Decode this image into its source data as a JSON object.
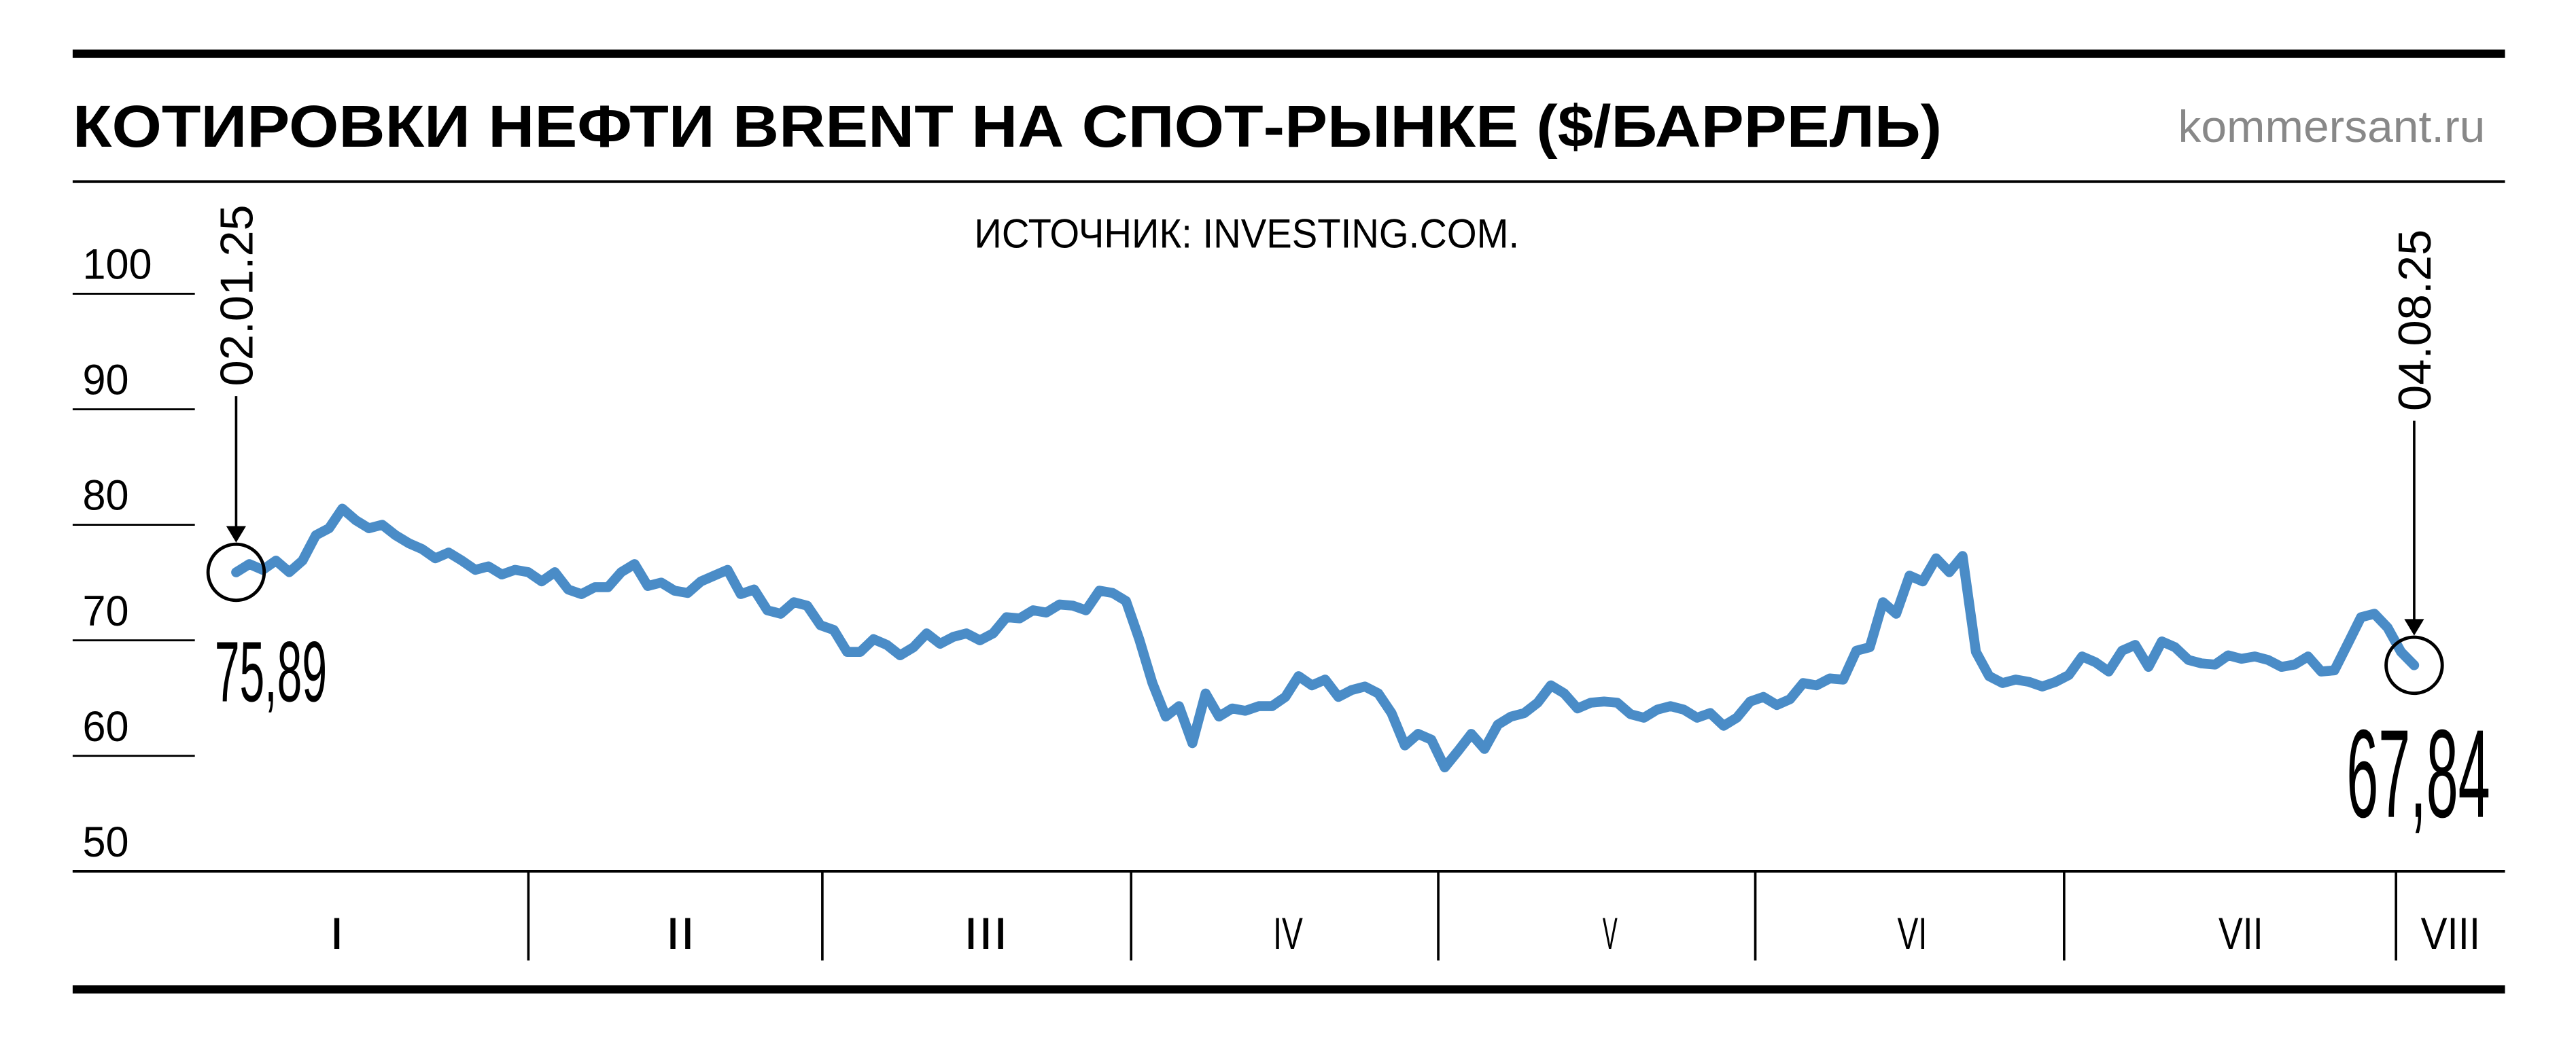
{
  "chart_data": {
    "type": "line",
    "title": "КОТИРОВКИ НЕФТИ BRENT НА СПОТ-РЫНКЕ ($/БАРРЕЛЬ)",
    "site": "kommersant.ru",
    "source": "ИСТОЧНИК: INVESTING.COM.",
    "months": [
      "I",
      "II",
      "III",
      "IV",
      "V",
      "VI",
      "VII",
      "VIII"
    ],
    "categories": [
      "02.01.25",
      null,
      null,
      null,
      null,
      null,
      null,
      null,
      null,
      null,
      null,
      null,
      null,
      null,
      null,
      null,
      null,
      null,
      null,
      null,
      null,
      null,
      null,
      null,
      null,
      null,
      null,
      null,
      null,
      null,
      null,
      null,
      null,
      null,
      null,
      null,
      null,
      null,
      null,
      null,
      null,
      null,
      null,
      null,
      null,
      null,
      null,
      null,
      null,
      null,
      null,
      null,
      null,
      null,
      null,
      null,
      null,
      null,
      null,
      null,
      null,
      null,
      null,
      null,
      null,
      null,
      null,
      null,
      null,
      null,
      null,
      null,
      null,
      null,
      null,
      null,
      null,
      null,
      null,
      null,
      null,
      null,
      null,
      null,
      null,
      null,
      null,
      null,
      null,
      null,
      null,
      null,
      null,
      null,
      null,
      null,
      null,
      null,
      null,
      null,
      null,
      null,
      null,
      null,
      null,
      null,
      null,
      null,
      null,
      null,
      null,
      null,
      null,
      null,
      null,
      null,
      null,
      null,
      null,
      null,
      null,
      null,
      null,
      null,
      null,
      null,
      null,
      null,
      null,
      null,
      null,
      null,
      null,
      null,
      null,
      null,
      null,
      null,
      null,
      null,
      null,
      null,
      null,
      null,
      null,
      null,
      null,
      null,
      null,
      null,
      null,
      null,
      null,
      null,
      null,
      null,
      null,
      null,
      null,
      null,
      null,
      null,
      null,
      null,
      "04.08.25"
    ],
    "series": [
      {
        "name": "Brent",
        "color": "#4a8cc7",
        "values": [
          75.89,
          76.6,
          76.1,
          76.9,
          75.9,
          76.9,
          79.1,
          79.7,
          81.4,
          80.4,
          79.7,
          80.0,
          79.1,
          78.4,
          77.9,
          77.1,
          77.6,
          76.9,
          76.1,
          76.4,
          75.7,
          76.1,
          75.9,
          75.1,
          75.9,
          74.4,
          74.0,
          74.6,
          74.6,
          75.9,
          76.6,
          74.7,
          75.0,
          74.3,
          74.1,
          75.1,
          75.6,
          76.1,
          74.0,
          74.4,
          72.6,
          72.3,
          73.3,
          73.0,
          71.3,
          70.9,
          69.0,
          69.0,
          70.1,
          69.6,
          68.7,
          69.4,
          70.6,
          69.7,
          70.3,
          70.6,
          70.0,
          70.6,
          72.0,
          71.9,
          72.6,
          72.4,
          73.1,
          73.0,
          72.6,
          74.3,
          74.1,
          73.4,
          70.1,
          66.3,
          63.4,
          64.3,
          61.1,
          65.4,
          63.4,
          64.1,
          63.9,
          64.3,
          64.3,
          65.1,
          66.9,
          66.1,
          66.6,
          65.1,
          65.7,
          66.0,
          65.4,
          63.7,
          60.9,
          61.9,
          61.4,
          59.0,
          60.4,
          61.9,
          60.6,
          62.7,
          63.4,
          63.7,
          64.6,
          66.1,
          65.4,
          64.1,
          64.6,
          64.7,
          64.6,
          63.6,
          63.3,
          64.0,
          64.3,
          64.0,
          63.3,
          63.7,
          62.6,
          63.3,
          64.7,
          65.1,
          64.4,
          64.9,
          66.3,
          66.1,
          66.7,
          66.6,
          69.1,
          69.4,
          73.3,
          72.3,
          75.6,
          75.1,
          77.1,
          75.9,
          77.3,
          69.0,
          66.9,
          66.3,
          66.6,
          66.4,
          66.0,
          66.4,
          67.0,
          68.6,
          68.1,
          67.3,
          69.1,
          69.6,
          67.7,
          69.9,
          69.4,
          68.3,
          68.0,
          67.9,
          68.7,
          68.4,
          68.6,
          68.3,
          67.7,
          67.9,
          68.6,
          67.3,
          67.4,
          69.7,
          72.0,
          72.3,
          71.1,
          69.0,
          67.84
        ],
        "value_labels": {
          "first": "75,89",
          "last": "67,84"
        }
      }
    ],
    "ylim": [
      50,
      100
    ],
    "yticks": [
      50,
      60,
      70,
      80,
      90,
      100
    ]
  }
}
